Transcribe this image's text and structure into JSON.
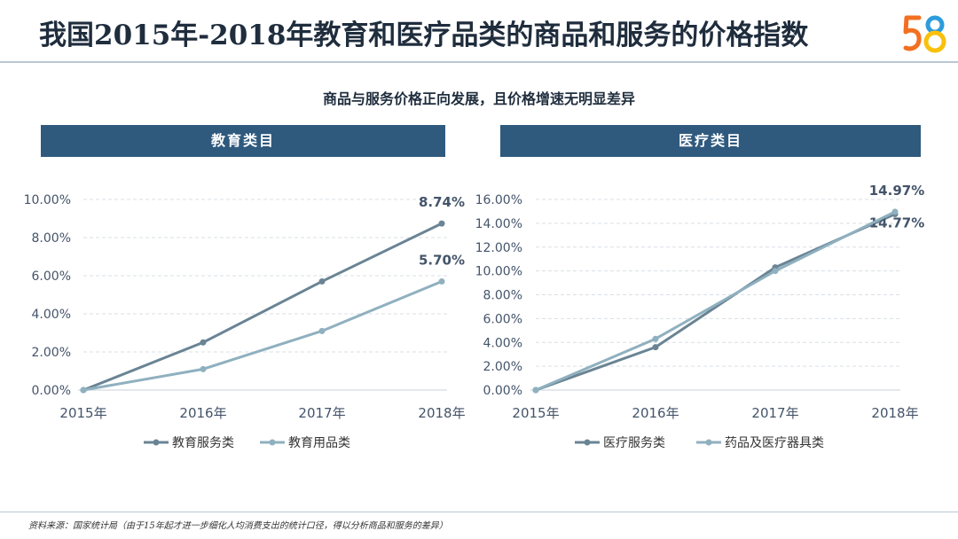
{
  "page": {
    "title": "我国2015年-2018年教育和医疗品类的商品和服务的价格指数",
    "subtitle": "商品与服务价格正向发展，且价格增速无明显差异",
    "logo_text": "58",
    "footnote": "资料来源：国家统计局（由于15年起才进一步细化人均消费支出的统计口径，得以分析商品和服务的差异）"
  },
  "colors": {
    "banner": "#2f5a7e",
    "series_dark": "#6a8494",
    "series_light": "#8fb0bf",
    "axis_text": "#44546a",
    "logo_5": "#f36f21",
    "logo_8_top": "#2d9cdb",
    "logo_8_bottom": "#f9c00c"
  },
  "chart_data": [
    {
      "type": "line",
      "title": "教育类目",
      "categories": [
        "2015年",
        "2016年",
        "2017年",
        "2018年"
      ],
      "ylim": [
        0,
        10
      ],
      "yticks": [
        "0.00%",
        "2.00%",
        "4.00%",
        "6.00%",
        "8.00%",
        "10.00%"
      ],
      "ytick_values": [
        0,
        2,
        4,
        6,
        8,
        10
      ],
      "grid": true,
      "legend": "bottom",
      "series": [
        {
          "name": "教育服务类",
          "values": [
            0,
            2.5,
            5.7,
            8.74
          ],
          "end_label": "8.74%",
          "color": "#6a8494"
        },
        {
          "name": "教育用品类",
          "values": [
            0,
            1.1,
            3.1,
            5.7
          ],
          "end_label": "5.70%",
          "color": "#8fb0bf"
        }
      ]
    },
    {
      "type": "line",
      "title": "医疗类目",
      "categories": [
        "2015年",
        "2016年",
        "2017年",
        "2018年"
      ],
      "ylim": [
        0,
        16
      ],
      "yticks": [
        "0.00%",
        "2.00%",
        "4.00%",
        "6.00%",
        "8.00%",
        "10.00%",
        "12.00%",
        "14.00%",
        "16.00%"
      ],
      "ytick_values": [
        0,
        2,
        4,
        6,
        8,
        10,
        12,
        14,
        16
      ],
      "grid": true,
      "legend": "bottom",
      "series": [
        {
          "name": "医疗服务类",
          "values": [
            0,
            3.6,
            10.3,
            14.77
          ],
          "end_label": "14.77%",
          "color": "#6a8494"
        },
        {
          "name": "药品及医疗器具类",
          "values": [
            0,
            4.3,
            10.0,
            14.97
          ],
          "end_label": "14.97%",
          "color": "#8fb0bf"
        }
      ]
    }
  ]
}
